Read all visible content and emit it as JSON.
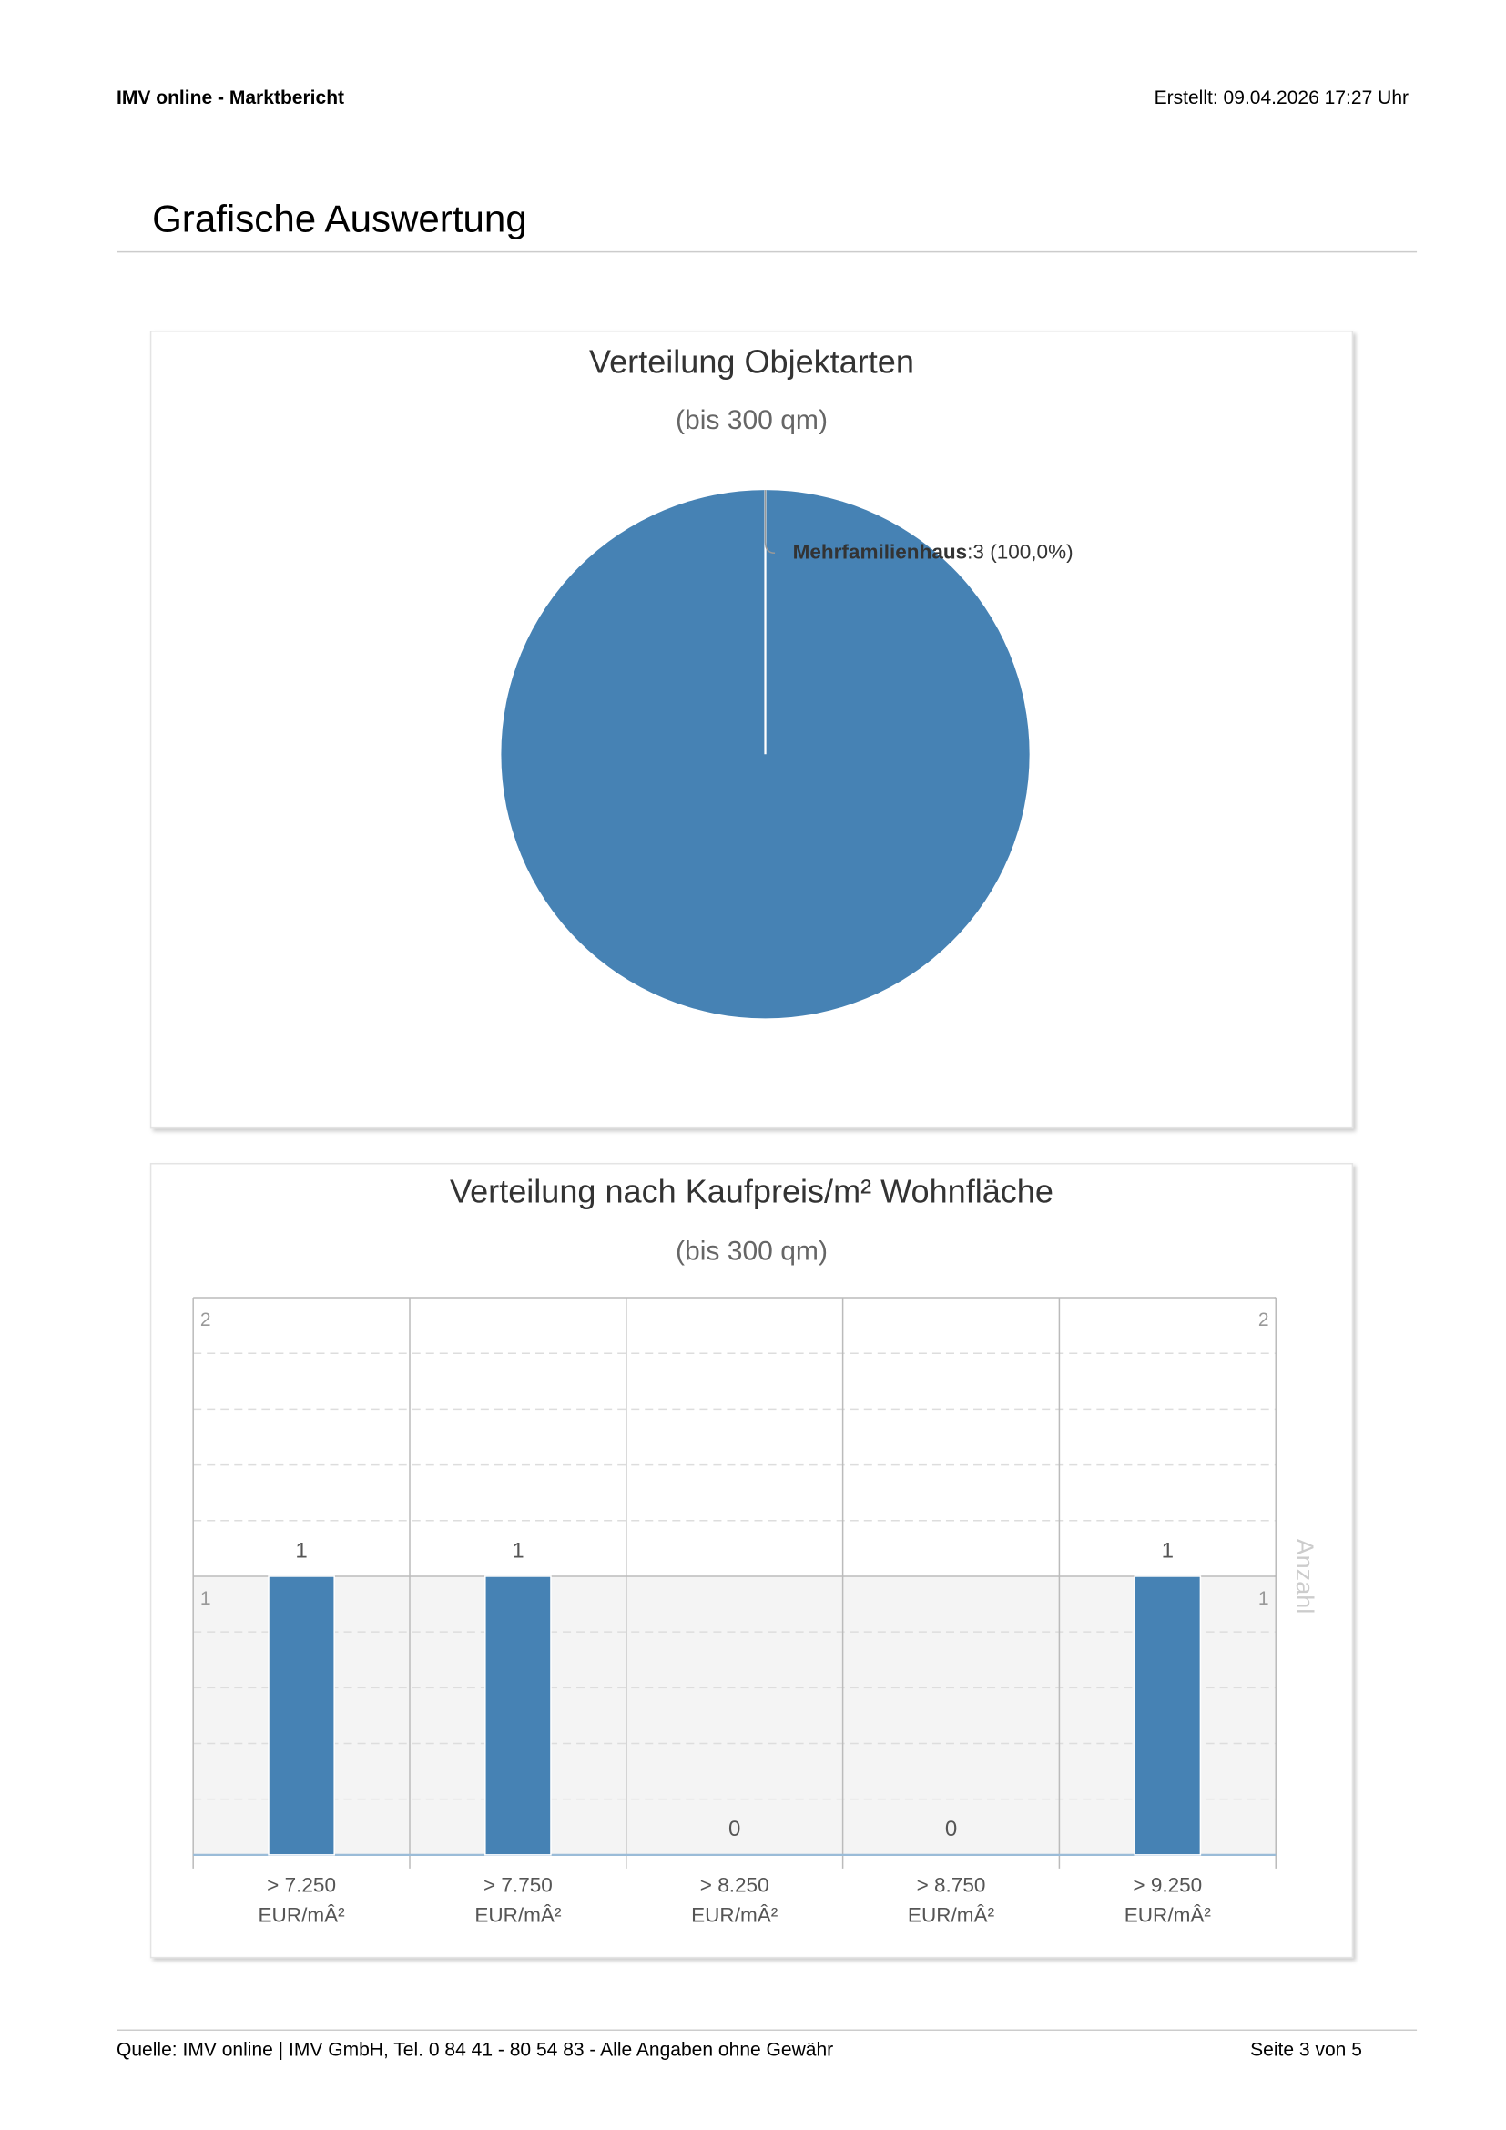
{
  "header": {
    "left": "IMV online - Marktbericht",
    "right": "Erstellt: 09.04.2026 17:27 Uhr"
  },
  "section_title": "Grafische Auswertung",
  "chart_data": [
    {
      "type": "pie",
      "title": "Verteilung Objektarten",
      "subtitle": "(bis 300 qm)",
      "categories": [
        "Mehrfamilienhaus"
      ],
      "values": [
        3
      ],
      "value_labels": [
        ":3 (100,0%)"
      ],
      "color": "#4682b4"
    },
    {
      "type": "bar",
      "title": "Verteilung nach Kaufpreis/m² Wohnfläche",
      "subtitle": "(bis 300 qm)",
      "categories": [
        "> 7.250 EUR/mÂ²",
        "> 7.750 EUR/mÂ²",
        "> 8.250 EUR/mÂ²",
        "> 8.750 EUR/mÂ²",
        "> 9.250 EUR/mÂ²"
      ],
      "values": [
        1,
        1,
        0,
        0,
        1
      ],
      "color": "#4682b4",
      "ylim": [
        0,
        2
      ],
      "yticks": [
        1,
        2
      ],
      "y2lim": [
        0,
        2
      ],
      "y2ticks": [
        1,
        2
      ],
      "y2label": "Anzahl",
      "plot_band": [
        0,
        1
      ],
      "grid": true
    }
  ],
  "footer": {
    "left": "Quelle: IMV online | IMV GmbH, Tel. 0 84 41 - 80 54 83 - Alle Angaben ohne Gewähr",
    "right": "Seite 3 von 5"
  }
}
